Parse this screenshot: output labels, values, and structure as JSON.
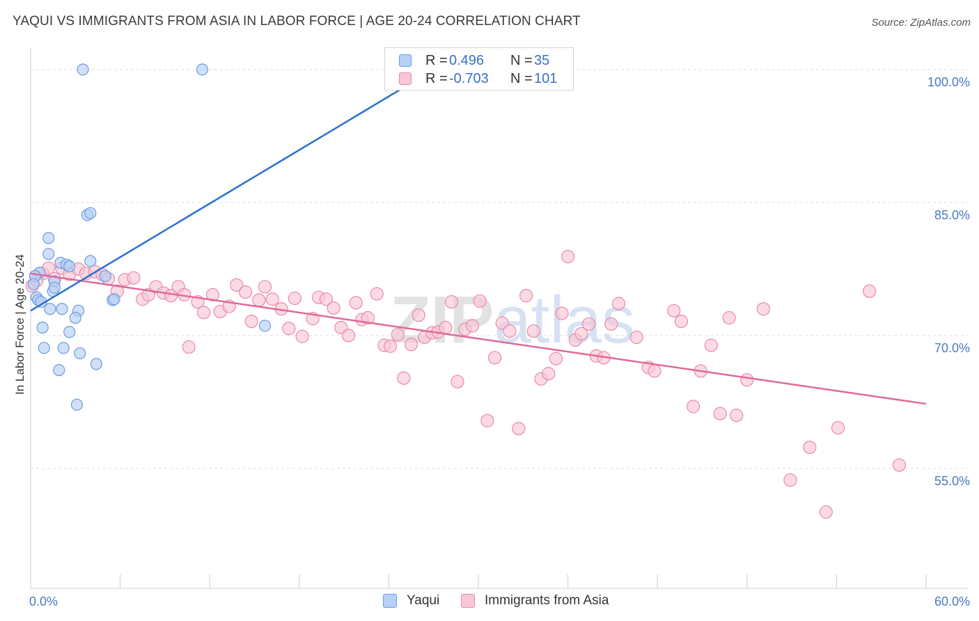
{
  "title": "YAQUI VS IMMIGRANTS FROM ASIA IN LABOR FORCE | AGE 20-24 CORRELATION CHART",
  "source": "Source: ZipAtlas.com",
  "watermark": "ZIPatlas",
  "legend": {
    "rows": [
      {
        "r_label": "R =",
        "r_value": " 0.496",
        "n_label": "N =",
        "n_value": " 35"
      },
      {
        "r_label": "R =",
        "r_value": "-0.703",
        "n_label": "N =",
        "n_value": "101"
      }
    ]
  },
  "bottom_legend": [
    "Yaqui",
    "Immigrants from Asia"
  ],
  "colors": {
    "yaqui_fill": "#b7d0f5",
    "yaqui_stroke": "#6a9be0",
    "yaqui_line": "#2b6fcf",
    "asia_fill": "#f9c6d6",
    "asia_stroke": "#e88aa8",
    "asia_line": "#e0689a",
    "grid": "#dcdcdc",
    "tick_text": "#4a78c2"
  },
  "chart_data": {
    "type": "scatter",
    "title": "YAQUI VS IMMIGRANTS FROM ASIA IN LABOR FORCE | AGE 20-24 CORRELATION CHART",
    "xlabel": "",
    "ylabel": "In Labor Force | Age 20-24",
    "xlim": [
      0,
      60
    ],
    "ylim": [
      41.5,
      102.5
    ],
    "x_tick_labels": [
      {
        "value": 0,
        "label": "0.0%"
      },
      {
        "value": 60,
        "label": "60.0%"
      }
    ],
    "y_tick_labels": [
      {
        "value": 55,
        "label": "55.0%"
      },
      {
        "value": 70,
        "label": "70.0%"
      },
      {
        "value": 85,
        "label": "85.0%"
      },
      {
        "value": 100,
        "label": "100.0%"
      }
    ],
    "x_minor_ticks": [
      0,
      6,
      12,
      18,
      24,
      30,
      36,
      42,
      48,
      54,
      60
    ],
    "grid": true,
    "series": [
      {
        "name": "Yaqui",
        "R": 0.496,
        "N": 35,
        "trend": {
          "x0": 0,
          "y0": 72.8,
          "x1": 28.5,
          "y1": 101.5
        },
        "points": [
          [
            3.5,
            100.0
          ],
          [
            11.5,
            100.0
          ],
          [
            3.8,
            83.6
          ],
          [
            4.0,
            83.8
          ],
          [
            1.2,
            81.0
          ],
          [
            1.2,
            79.2
          ],
          [
            2.0,
            78.2
          ],
          [
            2.4,
            78.0
          ],
          [
            4.0,
            78.4
          ],
          [
            0.6,
            77.1
          ],
          [
            0.3,
            76.7
          ],
          [
            1.6,
            76.1
          ],
          [
            2.6,
            77.8
          ],
          [
            5.0,
            76.7
          ],
          [
            0.4,
            74.3
          ],
          [
            0.5,
            74.0
          ],
          [
            1.5,
            75.0
          ],
          [
            1.6,
            75.4
          ],
          [
            5.5,
            74.0
          ],
          [
            5.6,
            74.1
          ],
          [
            1.3,
            73.0
          ],
          [
            2.1,
            73.0
          ],
          [
            3.2,
            72.8
          ],
          [
            3.0,
            72.0
          ],
          [
            0.8,
            70.9
          ],
          [
            2.6,
            70.4
          ],
          [
            15.7,
            71.1
          ],
          [
            0.9,
            68.6
          ],
          [
            2.2,
            68.6
          ],
          [
            3.3,
            68.0
          ],
          [
            4.4,
            66.8
          ],
          [
            1.9,
            66.1
          ],
          [
            3.1,
            62.2
          ],
          [
            0.2,
            75.8
          ],
          [
            0.7,
            73.8
          ]
        ]
      },
      {
        "name": "Immigrants from Asia",
        "R": -0.703,
        "N": 101,
        "trend": {
          "x0": 0,
          "y0": 77.0,
          "x1": 60,
          "y1": 62.3
        },
        "points": [
          [
            0.1,
            75.6
          ],
          [
            0.8,
            77.0
          ],
          [
            1.2,
            77.6
          ],
          [
            1.6,
            76.4
          ],
          [
            2.1,
            77.6
          ],
          [
            2.6,
            76.9
          ],
          [
            3.2,
            77.5
          ],
          [
            3.7,
            77.0
          ],
          [
            4.3,
            77.2
          ],
          [
            4.8,
            76.9
          ],
          [
            5.2,
            76.4
          ],
          [
            5.8,
            75.0
          ],
          [
            6.3,
            76.3
          ],
          [
            6.9,
            76.5
          ],
          [
            7.5,
            74.1
          ],
          [
            7.9,
            74.6
          ],
          [
            8.4,
            75.5
          ],
          [
            8.9,
            74.8
          ],
          [
            9.4,
            74.5
          ],
          [
            9.9,
            75.5
          ],
          [
            10.3,
            74.6
          ],
          [
            10.6,
            68.7
          ],
          [
            11.2,
            73.8
          ],
          [
            11.6,
            72.6
          ],
          [
            12.2,
            74.6
          ],
          [
            12.7,
            72.7
          ],
          [
            13.3,
            73.3
          ],
          [
            13.8,
            75.7
          ],
          [
            14.4,
            74.9
          ],
          [
            14.8,
            71.6
          ],
          [
            15.3,
            74.0
          ],
          [
            15.7,
            75.5
          ],
          [
            16.2,
            74.1
          ],
          [
            16.8,
            73.0
          ],
          [
            17.3,
            70.8
          ],
          [
            17.7,
            74.2
          ],
          [
            18.2,
            69.9
          ],
          [
            18.9,
            71.9
          ],
          [
            19.3,
            74.3
          ],
          [
            19.8,
            74.1
          ],
          [
            20.3,
            73.1
          ],
          [
            20.8,
            70.9
          ],
          [
            21.3,
            70.0
          ],
          [
            21.8,
            73.7
          ],
          [
            22.2,
            71.8
          ],
          [
            22.6,
            72.0
          ],
          [
            23.2,
            74.7
          ],
          [
            23.7,
            68.9
          ],
          [
            24.1,
            68.8
          ],
          [
            24.6,
            70.1
          ],
          [
            25.0,
            65.2
          ],
          [
            25.5,
            69.0
          ],
          [
            26.0,
            72.3
          ],
          [
            26.4,
            69.8
          ],
          [
            26.9,
            70.3
          ],
          [
            27.3,
            70.4
          ],
          [
            27.8,
            70.9
          ],
          [
            28.2,
            73.8
          ],
          [
            28.6,
            64.8
          ],
          [
            29.1,
            70.7
          ],
          [
            29.6,
            71.1
          ],
          [
            30.1,
            73.9
          ],
          [
            30.6,
            60.4
          ],
          [
            31.1,
            67.5
          ],
          [
            31.6,
            71.4
          ],
          [
            32.1,
            70.5
          ],
          [
            32.7,
            59.5
          ],
          [
            33.2,
            74.5
          ],
          [
            33.7,
            70.5
          ],
          [
            34.2,
            65.1
          ],
          [
            34.7,
            65.7
          ],
          [
            35.2,
            67.4
          ],
          [
            35.6,
            72.5
          ],
          [
            36.0,
            78.9
          ],
          [
            36.5,
            69.5
          ],
          [
            36.9,
            70.2
          ],
          [
            37.4,
            71.3
          ],
          [
            37.9,
            67.7
          ],
          [
            38.4,
            67.5
          ],
          [
            38.9,
            71.3
          ],
          [
            39.4,
            73.6
          ],
          [
            40.6,
            69.8
          ],
          [
            41.4,
            66.4
          ],
          [
            41.8,
            66.0
          ],
          [
            43.1,
            72.8
          ],
          [
            43.6,
            71.6
          ],
          [
            44.4,
            62.0
          ],
          [
            44.9,
            66.0
          ],
          [
            45.6,
            68.9
          ],
          [
            46.2,
            61.2
          ],
          [
            46.8,
            72.0
          ],
          [
            47.3,
            61.0
          ],
          [
            48.0,
            65.0
          ],
          [
            49.1,
            73.0
          ],
          [
            50.9,
            53.7
          ],
          [
            52.2,
            57.4
          ],
          [
            53.3,
            50.1
          ],
          [
            54.1,
            59.6
          ],
          [
            56.2,
            75.0
          ],
          [
            58.2,
            55.4
          ],
          [
            0.4,
            76.2
          ]
        ]
      }
    ]
  }
}
